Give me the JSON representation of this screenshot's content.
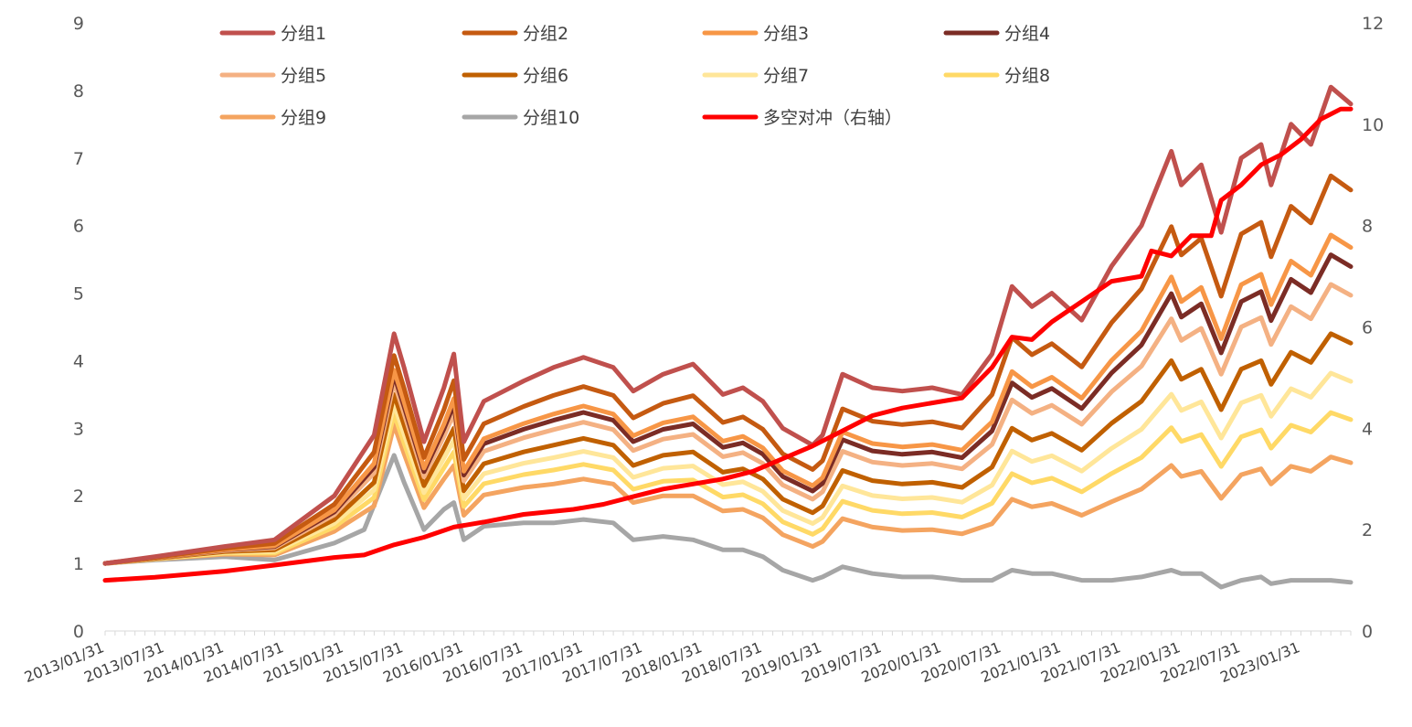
{
  "chart_data": {
    "type": "line",
    "title": "",
    "xlabel": "",
    "ylabel": "",
    "y_left": {
      "min": 0,
      "max": 9,
      "ticks": [
        "0",
        "1",
        "2",
        "3",
        "4",
        "5",
        "6",
        "7",
        "8",
        "9"
      ]
    },
    "y_right": {
      "min": 0,
      "max": 12,
      "ticks": [
        "0",
        "2",
        "4",
        "6",
        "8",
        "10",
        "12"
      ]
    },
    "x_labels": [
      "2013/01/31",
      "2013/07/31",
      "2014/01/31",
      "2014/07/31",
      "2015/01/31",
      "2015/07/31",
      "2016/01/31",
      "2016/07/31",
      "2017/01/31",
      "2017/07/31",
      "2018/01/31",
      "2018/07/31",
      "2019/01/31",
      "2019/07/31",
      "2020/01/31",
      "2020/07/31",
      "2021/01/31",
      "2021/07/31",
      "2022/01/31",
      "2022/07/31",
      "2023/01/31"
    ],
    "x_range": [
      "2013/01/31",
      "2023/06/30"
    ],
    "grid": false,
    "legend": {
      "placement": "top",
      "columns": 4
    },
    "series": [
      {
        "name": "分组1",
        "color": "#c0504d",
        "axis": "left",
        "points": [
          [
            "2013/01",
            1.0
          ],
          [
            "2013/06",
            1.1
          ],
          [
            "2014/01",
            1.25
          ],
          [
            "2014/06",
            1.35
          ],
          [
            "2014/12",
            2.0
          ],
          [
            "2015/04",
            2.9
          ],
          [
            "2015/06",
            4.4
          ],
          [
            "2015/07",
            3.9
          ],
          [
            "2015/09",
            2.8
          ],
          [
            "2015/11",
            3.6
          ],
          [
            "2015/12",
            4.1
          ],
          [
            "2016/01",
            2.8
          ],
          [
            "2016/03",
            3.4
          ],
          [
            "2016/07",
            3.7
          ],
          [
            "2016/10",
            3.9
          ],
          [
            "2017/01",
            4.05
          ],
          [
            "2017/04",
            3.9
          ],
          [
            "2017/06",
            3.55
          ],
          [
            "2017/09",
            3.8
          ],
          [
            "2017/12",
            3.95
          ],
          [
            "2018/03",
            3.5
          ],
          [
            "2018/05",
            3.6
          ],
          [
            "2018/07",
            3.4
          ],
          [
            "2018/09",
            3.0
          ],
          [
            "2018/12",
            2.75
          ],
          [
            "2019/01",
            2.9
          ],
          [
            "2019/03",
            3.8
          ],
          [
            "2019/06",
            3.6
          ],
          [
            "2019/09",
            3.55
          ],
          [
            "2019/12",
            3.6
          ],
          [
            "2020/03",
            3.5
          ],
          [
            "2020/06",
            4.1
          ],
          [
            "2020/08",
            5.1
          ],
          [
            "2020/10",
            4.8
          ],
          [
            "2020/12",
            5.0
          ],
          [
            "2021/03",
            4.6
          ],
          [
            "2021/06",
            5.4
          ],
          [
            "2021/09",
            6.0
          ],
          [
            "2021/12",
            7.1
          ],
          [
            "2022/01",
            6.6
          ],
          [
            "2022/03",
            6.9
          ],
          [
            "2022/05",
            5.9
          ],
          [
            "2022/07",
            7.0
          ],
          [
            "2022/09",
            7.2
          ],
          [
            "2022/10",
            6.6
          ],
          [
            "2022/12",
            7.5
          ],
          [
            "2023/02",
            7.2
          ],
          [
            "2023/04",
            8.05
          ],
          [
            "2023/06",
            7.8
          ]
        ]
      },
      {
        "name": "分组2",
        "color": "#c55a11",
        "axis": "left",
        "scale": 0.82
      },
      {
        "name": "分组3",
        "color": "#f79646",
        "axis": "left",
        "scale": 0.7
      },
      {
        "name": "分组4",
        "color": "#7b2c25",
        "axis": "left",
        "scale": 0.66
      },
      {
        "name": "分组5",
        "color": "#f4b183",
        "axis": "left",
        "scale": 0.6
      },
      {
        "name": "分组6",
        "color": "#c06000",
        "axis": "left",
        "scale": 0.5
      },
      {
        "name": "分组7",
        "color": "#ffe699",
        "axis": "left",
        "scale": 0.42
      },
      {
        "name": "分组8",
        "color": "#ffd966",
        "axis": "left",
        "scale": 0.34
      },
      {
        "name": "分组9",
        "color": "#f4a460",
        "axis": "left",
        "scale": 0.25
      },
      {
        "name": "分组10",
        "color": "#a6a6a6",
        "axis": "left",
        "points": [
          [
            "2013/01",
            1.0
          ],
          [
            "2013/06",
            1.05
          ],
          [
            "2014/01",
            1.1
          ],
          [
            "2014/06",
            1.05
          ],
          [
            "2014/12",
            1.3
          ],
          [
            "2015/03",
            1.5
          ],
          [
            "2015/06",
            2.6
          ],
          [
            "2015/07",
            2.2
          ],
          [
            "2015/09",
            1.5
          ],
          [
            "2015/11",
            1.8
          ],
          [
            "2015/12",
            1.9
          ],
          [
            "2016/01",
            1.35
          ],
          [
            "2016/03",
            1.55
          ],
          [
            "2016/07",
            1.6
          ],
          [
            "2016/10",
            1.6
          ],
          [
            "2017/01",
            1.65
          ],
          [
            "2017/04",
            1.6
          ],
          [
            "2017/06",
            1.35
          ],
          [
            "2017/09",
            1.4
          ],
          [
            "2017/12",
            1.35
          ],
          [
            "2018/03",
            1.2
          ],
          [
            "2018/05",
            1.2
          ],
          [
            "2018/07",
            1.1
          ],
          [
            "2018/09",
            0.9
          ],
          [
            "2018/12",
            0.75
          ],
          [
            "2019/01",
            0.8
          ],
          [
            "2019/03",
            0.95
          ],
          [
            "2019/06",
            0.85
          ],
          [
            "2019/09",
            0.8
          ],
          [
            "2019/12",
            0.8
          ],
          [
            "2020/03",
            0.75
          ],
          [
            "2020/06",
            0.75
          ],
          [
            "2020/08",
            0.9
          ],
          [
            "2020/10",
            0.85
          ],
          [
            "2020/12",
            0.85
          ],
          [
            "2021/03",
            0.75
          ],
          [
            "2021/06",
            0.75
          ],
          [
            "2021/09",
            0.8
          ],
          [
            "2021/12",
            0.9
          ],
          [
            "2022/01",
            0.85
          ],
          [
            "2022/03",
            0.85
          ],
          [
            "2022/05",
            0.65
          ],
          [
            "2022/07",
            0.75
          ],
          [
            "2022/09",
            0.8
          ],
          [
            "2022/10",
            0.7
          ],
          [
            "2022/12",
            0.75
          ],
          [
            "2023/02",
            0.75
          ],
          [
            "2023/04",
            0.75
          ],
          [
            "2023/06",
            0.72
          ]
        ]
      },
      {
        "name": "多空对冲（右轴）",
        "color": "#ff0000",
        "axis": "right",
        "points": [
          [
            "2013/01",
            1.0
          ],
          [
            "2013/06",
            1.06
          ],
          [
            "2014/01",
            1.18
          ],
          [
            "2014/06",
            1.3
          ],
          [
            "2014/12",
            1.45
          ],
          [
            "2015/03",
            1.5
          ],
          [
            "2015/06",
            1.7
          ],
          [
            "2015/09",
            1.85
          ],
          [
            "2015/12",
            2.05
          ],
          [
            "2016/03",
            2.15
          ],
          [
            "2016/07",
            2.3
          ],
          [
            "2016/12",
            2.4
          ],
          [
            "2017/03",
            2.5
          ],
          [
            "2017/06",
            2.65
          ],
          [
            "2017/09",
            2.8
          ],
          [
            "2017/12",
            2.9
          ],
          [
            "2018/03",
            3.0
          ],
          [
            "2018/06",
            3.15
          ],
          [
            "2018/09",
            3.4
          ],
          [
            "2018/12",
            3.65
          ],
          [
            "2019/03",
            3.95
          ],
          [
            "2019/06",
            4.25
          ],
          [
            "2019/09",
            4.4
          ],
          [
            "2019/12",
            4.5
          ],
          [
            "2020/03",
            4.6
          ],
          [
            "2020/06",
            5.2
          ],
          [
            "2020/08",
            5.8
          ],
          [
            "2020/10",
            5.75
          ],
          [
            "2020/12",
            6.1
          ],
          [
            "2021/03",
            6.5
          ],
          [
            "2021/06",
            6.9
          ],
          [
            "2021/09",
            7.0
          ],
          [
            "2021/10",
            7.5
          ],
          [
            "2021/12",
            7.4
          ],
          [
            "2022/02",
            7.8
          ],
          [
            "2022/04",
            7.8
          ],
          [
            "2022/05",
            8.5
          ],
          [
            "2022/07",
            8.8
          ],
          [
            "2022/09",
            9.2
          ],
          [
            "2022/11",
            9.4
          ],
          [
            "2023/01",
            9.7
          ],
          [
            "2023/03",
            10.1
          ],
          [
            "2023/05",
            10.3
          ],
          [
            "2023/06",
            10.3
          ]
        ]
      }
    ]
  }
}
